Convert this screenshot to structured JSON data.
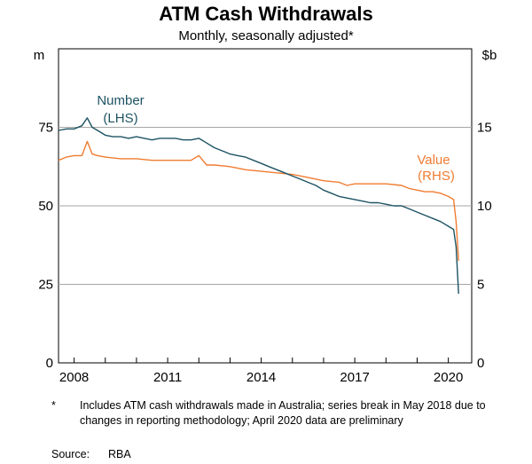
{
  "chart_data": {
    "type": "line",
    "title": "ATM Cash Withdrawals",
    "subtitle": "Monthly, seasonally adjusted*",
    "left_axis": {
      "unit": "m",
      "range": [
        0,
        100
      ],
      "ticks": [
        0,
        25,
        50,
        75
      ]
    },
    "right_axis": {
      "unit": "$b",
      "range": [
        0,
        20
      ],
      "ticks": [
        0,
        5,
        10,
        15
      ]
    },
    "x_axis": {
      "range": [
        2007.5,
        2020.75
      ],
      "ticks": [
        2008,
        2011,
        2014,
        2017,
        2020
      ]
    },
    "grid": "horizontal",
    "series": [
      {
        "name": "Number",
        "sub_label": "(LHS)",
        "axis": "left",
        "color": "#1d5363",
        "points": [
          [
            2007.5,
            74.0
          ],
          [
            2007.75,
            74.5
          ],
          [
            2008.0,
            74.5
          ],
          [
            2008.25,
            75.5
          ],
          [
            2008.42,
            78.0
          ],
          [
            2008.58,
            75.0
          ],
          [
            2008.75,
            74.0
          ],
          [
            2009.0,
            72.5
          ],
          [
            2009.25,
            72.0
          ],
          [
            2009.5,
            72.0
          ],
          [
            2009.75,
            71.5
          ],
          [
            2010.0,
            72.0
          ],
          [
            2010.25,
            71.5
          ],
          [
            2010.5,
            71.0
          ],
          [
            2010.75,
            71.5
          ],
          [
            2011.0,
            71.5
          ],
          [
            2011.25,
            71.5
          ],
          [
            2011.5,
            71.0
          ],
          [
            2011.75,
            71.0
          ],
          [
            2012.0,
            71.5
          ],
          [
            2012.25,
            70.0
          ],
          [
            2012.5,
            68.5
          ],
          [
            2012.75,
            67.5
          ],
          [
            2013.0,
            66.5
          ],
          [
            2013.25,
            66.0
          ],
          [
            2013.5,
            65.5
          ],
          [
            2013.75,
            64.5
          ],
          [
            2014.0,
            63.5
          ],
          [
            2014.25,
            62.5
          ],
          [
            2014.5,
            61.5
          ],
          [
            2014.75,
            60.5
          ],
          [
            2015.0,
            59.5
          ],
          [
            2015.25,
            58.5
          ],
          [
            2015.5,
            57.5
          ],
          [
            2015.75,
            56.5
          ],
          [
            2016.0,
            55.0
          ],
          [
            2016.25,
            54.0
          ],
          [
            2016.5,
            53.0
          ],
          [
            2016.75,
            52.5
          ],
          [
            2017.0,
            52.0
          ],
          [
            2017.25,
            51.5
          ],
          [
            2017.5,
            51.0
          ],
          [
            2017.75,
            51.0
          ],
          [
            2018.0,
            50.5
          ],
          [
            2018.25,
            50.0
          ],
          [
            2018.5,
            50.0
          ],
          [
            2018.75,
            49.0
          ],
          [
            2019.0,
            48.0
          ],
          [
            2019.25,
            47.0
          ],
          [
            2019.5,
            46.0
          ],
          [
            2019.75,
            45.0
          ],
          [
            2020.0,
            43.5
          ],
          [
            2020.17,
            42.5
          ],
          [
            2020.25,
            37.0
          ],
          [
            2020.33,
            22.0
          ]
        ]
      },
      {
        "name": "Value",
        "sub_label": "(RHS)",
        "axis": "right",
        "color": "#f07c31",
        "points": [
          [
            2007.5,
            12.9
          ],
          [
            2007.75,
            13.1
          ],
          [
            2008.0,
            13.2
          ],
          [
            2008.25,
            13.2
          ],
          [
            2008.42,
            14.1
          ],
          [
            2008.58,
            13.3
          ],
          [
            2008.75,
            13.2
          ],
          [
            2009.0,
            13.1
          ],
          [
            2009.5,
            13.0
          ],
          [
            2010.0,
            13.0
          ],
          [
            2010.5,
            12.9
          ],
          [
            2011.0,
            12.9
          ],
          [
            2011.5,
            12.9
          ],
          [
            2011.75,
            12.9
          ],
          [
            2012.0,
            13.2
          ],
          [
            2012.25,
            12.6
          ],
          [
            2012.5,
            12.6
          ],
          [
            2013.0,
            12.5
          ],
          [
            2013.5,
            12.3
          ],
          [
            2014.0,
            12.2
          ],
          [
            2014.5,
            12.1
          ],
          [
            2015.0,
            12.0
          ],
          [
            2015.5,
            11.8
          ],
          [
            2016.0,
            11.6
          ],
          [
            2016.5,
            11.5
          ],
          [
            2016.75,
            11.3
          ],
          [
            2017.0,
            11.4
          ],
          [
            2017.5,
            11.4
          ],
          [
            2018.0,
            11.4
          ],
          [
            2018.5,
            11.3
          ],
          [
            2018.75,
            11.1
          ],
          [
            2019.0,
            11.0
          ],
          [
            2019.25,
            10.9
          ],
          [
            2019.5,
            10.9
          ],
          [
            2019.75,
            10.8
          ],
          [
            2020.0,
            10.6
          ],
          [
            2020.17,
            10.4
          ],
          [
            2020.25,
            9.0
          ],
          [
            2020.33,
            6.5
          ]
        ]
      }
    ]
  },
  "footnote": {
    "mark": "*",
    "text": "Includes ATM cash withdrawals made in Australia; series break in May 2018 due to changes in reporting methodology; April 2020 data are preliminary"
  },
  "source": {
    "label": "Source:",
    "value": "RBA"
  }
}
